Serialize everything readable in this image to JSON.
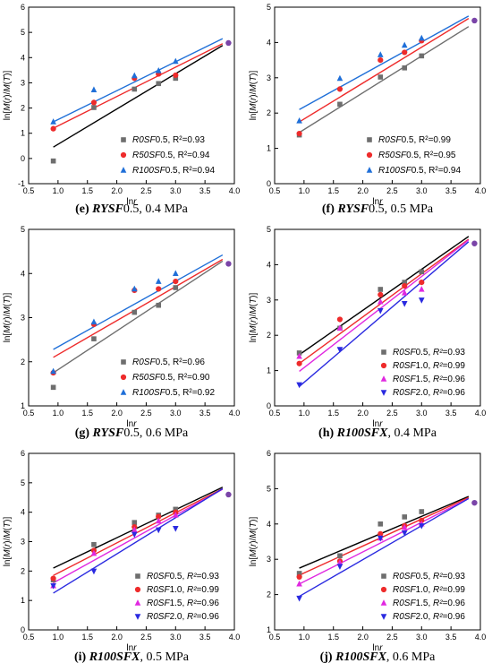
{
  "chart_data": [
    {
      "type": "scatter",
      "panel": "e",
      "caption": {
        "label": "(e) ",
        "series": "RYSF",
        "rest": "0.5, 0.4 MPa"
      },
      "xlabel": "lnr",
      "ylabel": "ln[M(r)/M(T)]",
      "xlim": [
        0.5,
        4.0
      ],
      "ylim": [
        -1,
        6
      ],
      "yticks": [
        -1,
        0,
        1,
        2,
        3,
        4,
        5,
        6
      ],
      "series": [
        {
          "name": "R0SF0.5, R²=0.93",
          "color": "#6e6e6e",
          "marker": "square",
          "line": "#000000",
          "points": [
            [
              0.92,
              -0.1
            ],
            [
              1.61,
              2.02
            ],
            [
              2.3,
              2.75
            ],
            [
              2.71,
              2.97
            ],
            [
              3.0,
              3.18
            ]
          ],
          "fit": [
            [
              0.92,
              0.45
            ],
            [
              3.8,
              4.48
            ]
          ]
        },
        {
          "name": "R50SF0.5, R²=0.94",
          "color": "#ee2b2b",
          "marker": "circle",
          "line": "#ee2b2b",
          "points": [
            [
              0.92,
              1.18
            ],
            [
              1.61,
              2.22
            ],
            [
              2.3,
              3.18
            ],
            [
              2.71,
              3.35
            ],
            [
              3.0,
              3.3
            ]
          ],
          "fit": [
            [
              0.92,
              1.2
            ],
            [
              3.8,
              4.55
            ]
          ]
        },
        {
          "name": "R100SF0.5, R²=0.94",
          "color": "#1f6fd8",
          "marker": "triangle",
          "line": "#1f6fd8",
          "points": [
            [
              0.92,
              1.45
            ],
            [
              1.61,
              2.72
            ],
            [
              2.3,
              3.28
            ],
            [
              2.71,
              3.48
            ],
            [
              3.0,
              3.85
            ]
          ],
          "fit": [
            [
              0.92,
              1.45
            ],
            [
              3.8,
              4.75
            ]
          ]
        }
      ],
      "extra_points": [
        {
          "x": 3.9,
          "y": 4.58,
          "color": "#7a44a8"
        }
      ]
    },
    {
      "type": "scatter",
      "panel": "f",
      "caption": {
        "label": "(f) ",
        "series": "RYSF",
        "rest": "0.5, 0.5 MPa"
      },
      "xlabel": "lnr",
      "ylabel": "ln[M(r)/M(T)]",
      "xlim": [
        0.5,
        4.0
      ],
      "ylim": [
        0,
        5
      ],
      "yticks": [
        0,
        1,
        2,
        3,
        4,
        5
      ],
      "series": [
        {
          "name": "R0SF0.5, R²=0.99",
          "color": "#6e6e6e",
          "marker": "square",
          "line": "#6e6e6e",
          "points": [
            [
              0.92,
              1.38
            ],
            [
              1.61,
              2.25
            ],
            [
              2.3,
              3.02
            ],
            [
              2.71,
              3.28
            ],
            [
              3.0,
              3.62
            ]
          ],
          "fit": [
            [
              0.92,
              1.45
            ],
            [
              3.8,
              4.45
            ]
          ]
        },
        {
          "name": "R50SF0.5, R²=0.95",
          "color": "#ee2b2b",
          "marker": "circle",
          "line": "#ee2b2b",
          "points": [
            [
              0.92,
              1.42
            ],
            [
              1.61,
              2.68
            ],
            [
              2.3,
              3.5
            ],
            [
              2.71,
              3.72
            ],
            [
              3.0,
              4.05
            ]
          ],
          "fit": [
            [
              0.92,
              1.75
            ],
            [
              3.8,
              4.68
            ]
          ]
        },
        {
          "name": "R100SF0.5, R²=0.94",
          "color": "#1f6fd8",
          "marker": "triangle",
          "line": "#1f6fd8",
          "points": [
            [
              0.92,
              1.78
            ],
            [
              1.61,
              2.98
            ],
            [
              2.3,
              3.65
            ],
            [
              2.71,
              3.92
            ],
            [
              3.0,
              4.12
            ]
          ],
          "fit": [
            [
              0.92,
              2.1
            ],
            [
              3.8,
              4.75
            ]
          ]
        }
      ],
      "extra_points": [
        {
          "x": 3.9,
          "y": 4.62,
          "color": "#7a44a8"
        }
      ]
    },
    {
      "type": "scatter",
      "panel": "g",
      "caption": {
        "label": "(g) ",
        "series": "RYSF",
        "rest": "0.5, 0.6 MPa"
      },
      "xlabel": "lnr",
      "ylabel": "ln[M(r)/M(T)]",
      "xlim": [
        0.5,
        4.0
      ],
      "ylim": [
        1,
        5
      ],
      "yticks": [
        1,
        2,
        3,
        4,
        5
      ],
      "series": [
        {
          "name": "R0SF0.5, R²=0.96",
          "color": "#6e6e6e",
          "marker": "square",
          "line": "#6e6e6e",
          "points": [
            [
              0.92,
              1.42
            ],
            [
              1.61,
              2.52
            ],
            [
              2.3,
              3.12
            ],
            [
              2.71,
              3.28
            ],
            [
              3.0,
              3.68
            ]
          ],
          "fit": [
            [
              0.92,
              1.75
            ],
            [
              3.8,
              4.28
            ]
          ]
        },
        {
          "name": "R50SF0.5, R²=0.90",
          "color": "#ee2b2b",
          "marker": "circle",
          "line": "#ee2b2b",
          "points": [
            [
              0.92,
              1.75
            ],
            [
              1.61,
              2.85
            ],
            [
              2.3,
              3.62
            ],
            [
              2.71,
              3.65
            ],
            [
              3.0,
              3.82
            ]
          ],
          "fit": [
            [
              0.92,
              2.1
            ],
            [
              3.8,
              4.32
            ]
          ]
        },
        {
          "name": "R100SF0.5, R²=0.92",
          "color": "#1f6fd8",
          "marker": "triangle",
          "line": "#1f6fd8",
          "points": [
            [
              0.92,
              1.78
            ],
            [
              1.61,
              2.9
            ],
            [
              2.3,
              3.65
            ],
            [
              2.71,
              3.82
            ],
            [
              3.0,
              4.0
            ]
          ],
          "fit": [
            [
              0.92,
              2.28
            ],
            [
              3.8,
              4.42
            ]
          ]
        }
      ],
      "extra_points": [
        {
          "x": 3.9,
          "y": 4.22,
          "color": "#7a44a8"
        }
      ]
    },
    {
      "type": "scatter",
      "panel": "h",
      "caption": {
        "label": "(h) ",
        "series": "R100SFX",
        "rest": ", 0.4 MPa"
      },
      "xlabel": "lnr",
      "ylabel": "ln[M(r)/M(T)]",
      "xlim": [
        0.5,
        4.0
      ],
      "ylim": [
        0,
        5
      ],
      "yticks": [
        0,
        1,
        2,
        3,
        4,
        5
      ],
      "series": [
        {
          "name": "R0SF0.5, R²=0.93",
          "color": "#6e6e6e",
          "marker": "square",
          "line": "#000000",
          "points": [
            [
              0.92,
              1.5
            ],
            [
              1.61,
              2.2
            ],
            [
              2.3,
              3.3
            ],
            [
              2.71,
              3.5
            ],
            [
              3.0,
              3.8
            ]
          ],
          "fit": [
            [
              0.92,
              1.45
            ],
            [
              3.8,
              4.8
            ]
          ]
        },
        {
          "name": "R0SF1.0, R²=0.99",
          "color": "#ee2b2b",
          "marker": "circle",
          "line": "#ee2b2b",
          "points": [
            [
              0.92,
              1.2
            ],
            [
              1.61,
              2.45
            ],
            [
              2.3,
              3.15
            ],
            [
              2.71,
              3.4
            ],
            [
              3.0,
              3.5
            ]
          ],
          "fit": [
            [
              0.92,
              1.2
            ],
            [
              3.8,
              4.72
            ]
          ]
        },
        {
          "name": "R0SF1.5, R²=0.96",
          "color": "#e028e0",
          "marker": "triangle",
          "line": "#e028e0",
          "points": [
            [
              0.92,
              1.4
            ],
            [
              1.61,
              2.2
            ],
            [
              2.3,
              2.95
            ],
            [
              2.71,
              3.2
            ],
            [
              3.0,
              3.3
            ]
          ],
          "fit": [
            [
              0.92,
              0.98
            ],
            [
              3.8,
              4.7
            ]
          ]
        },
        {
          "name": "R0SF2.0, R²=0.96",
          "color": "#2a2ae0",
          "marker": "triangle-down",
          "line": "#2a2ae0",
          "points": [
            [
              0.92,
              0.6
            ],
            [
              1.61,
              1.6
            ],
            [
              2.3,
              2.7
            ],
            [
              2.71,
              2.9
            ],
            [
              3.0,
              3.0
            ]
          ],
          "fit": [
            [
              0.92,
              0.55
            ],
            [
              3.8,
              4.65
            ]
          ]
        }
      ],
      "extra_points": [
        {
          "x": 3.9,
          "y": 4.6,
          "color": "#7a44a8"
        }
      ]
    },
    {
      "type": "scatter",
      "panel": "i",
      "caption": {
        "label": "(i) ",
        "series": "R100SFX",
        "rest": ", 0.5 MPa"
      },
      "xlabel": "lnr",
      "ylabel": "ln[M(r)/M(T)]",
      "xlim": [
        0.5,
        4.0
      ],
      "ylim": [
        0,
        6
      ],
      "yticks": [
        0,
        1,
        2,
        3,
        4,
        5,
        6
      ],
      "series": [
        {
          "name": "R0SF0.5, R²=0.93",
          "color": "#6e6e6e",
          "marker": "square",
          "line": "#000000",
          "points": [
            [
              0.92,
              1.7
            ],
            [
              1.61,
              2.9
            ],
            [
              2.3,
              3.65
            ],
            [
              2.71,
              3.9
            ],
            [
              3.0,
              4.1
            ]
          ],
          "fit": [
            [
              0.92,
              2.1
            ],
            [
              3.8,
              4.85
            ]
          ]
        },
        {
          "name": "R0SF1.0, R²=0.99",
          "color": "#ee2b2b",
          "marker": "circle",
          "line": "#ee2b2b",
          "points": [
            [
              0.92,
              1.75
            ],
            [
              1.61,
              2.7
            ],
            [
              2.3,
              3.5
            ],
            [
              2.71,
              3.85
            ],
            [
              3.0,
              4.0
            ]
          ],
          "fit": [
            [
              0.92,
              1.85
            ],
            [
              3.8,
              4.8
            ]
          ]
        },
        {
          "name": "R0SF1.5, R²=0.96",
          "color": "#e028e0",
          "marker": "triangle",
          "line": "#e028e0",
          "points": [
            [
              0.92,
              1.5
            ],
            [
              1.61,
              2.6
            ],
            [
              2.3,
              3.4
            ],
            [
              2.71,
              3.7
            ],
            [
              3.0,
              3.9
            ]
          ],
          "fit": [
            [
              0.92,
              1.6
            ],
            [
              3.8,
              4.78
            ]
          ]
        },
        {
          "name": "R0SF2.0, R²=0.96",
          "color": "#2a2ae0",
          "marker": "triangle-down",
          "line": "#2a2ae0",
          "points": [
            [
              0.92,
              1.5
            ],
            [
              1.61,
              2.0
            ],
            [
              2.3,
              3.25
            ],
            [
              2.71,
              3.4
            ],
            [
              3.0,
              3.45
            ]
          ],
          "fit": [
            [
              0.92,
              1.25
            ],
            [
              3.8,
              4.8
            ]
          ]
        }
      ],
      "extra_points": [
        {
          "x": 3.9,
          "y": 4.6,
          "color": "#7a44a8"
        }
      ]
    },
    {
      "type": "scatter",
      "panel": "j",
      "caption": {
        "label": "(j) ",
        "series": "R100SFX",
        "rest": ", 0.6 MPa"
      },
      "xlabel": "lnr",
      "ylabel": "ln[M(r)/M(T)]",
      "xlim": [
        0.5,
        4.0
      ],
      "ylim": [
        1,
        6
      ],
      "yticks": [
        1,
        2,
        3,
        4,
        5,
        6
      ],
      "series": [
        {
          "name": "R0SF0.5, R²=0.93",
          "color": "#6e6e6e",
          "marker": "square",
          "line": "#000000",
          "points": [
            [
              0.92,
              2.6
            ],
            [
              1.61,
              3.1
            ],
            [
              2.3,
              4.0
            ],
            [
              2.71,
              4.2
            ],
            [
              3.0,
              4.35
            ]
          ],
          "fit": [
            [
              0.92,
              2.75
            ],
            [
              3.8,
              4.78
            ]
          ]
        },
        {
          "name": "R0SF1.0, R²=0.99",
          "color": "#ee2b2b",
          "marker": "circle",
          "line": "#ee2b2b",
          "points": [
            [
              0.92,
              2.5
            ],
            [
              1.61,
              2.95
            ],
            [
              2.3,
              3.72
            ],
            [
              2.71,
              3.95
            ],
            [
              3.0,
              4.1
            ]
          ],
          "fit": [
            [
              0.92,
              2.55
            ],
            [
              3.8,
              4.75
            ]
          ]
        },
        {
          "name": "R0SF1.5, R²=0.96",
          "color": "#e028e0",
          "marker": "triangle",
          "line": "#e028e0",
          "points": [
            [
              0.92,
              2.3
            ],
            [
              1.61,
              2.9
            ],
            [
              2.3,
              3.6
            ],
            [
              2.71,
              3.9
            ],
            [
              3.0,
              4.0
            ]
          ],
          "fit": [
            [
              0.92,
              2.3
            ],
            [
              3.8,
              4.72
            ]
          ]
        },
        {
          "name": "R0SF2.0, R²=0.96",
          "color": "#2a2ae0",
          "marker": "triangle-down",
          "line": "#2a2ae0",
          "points": [
            [
              0.92,
              1.9
            ],
            [
              1.61,
              2.8
            ],
            [
              2.3,
              3.6
            ],
            [
              2.71,
              3.75
            ],
            [
              3.0,
              3.95
            ]
          ],
          "fit": [
            [
              0.92,
              1.95
            ],
            [
              3.8,
              4.72
            ]
          ]
        }
      ],
      "extra_points": [
        {
          "x": 3.9,
          "y": 4.6,
          "color": "#7a44a8"
        }
      ]
    }
  ],
  "xticks": [
    0.5,
    1.0,
    1.5,
    2.0,
    2.5,
    3.0,
    3.5,
    4.0
  ]
}
